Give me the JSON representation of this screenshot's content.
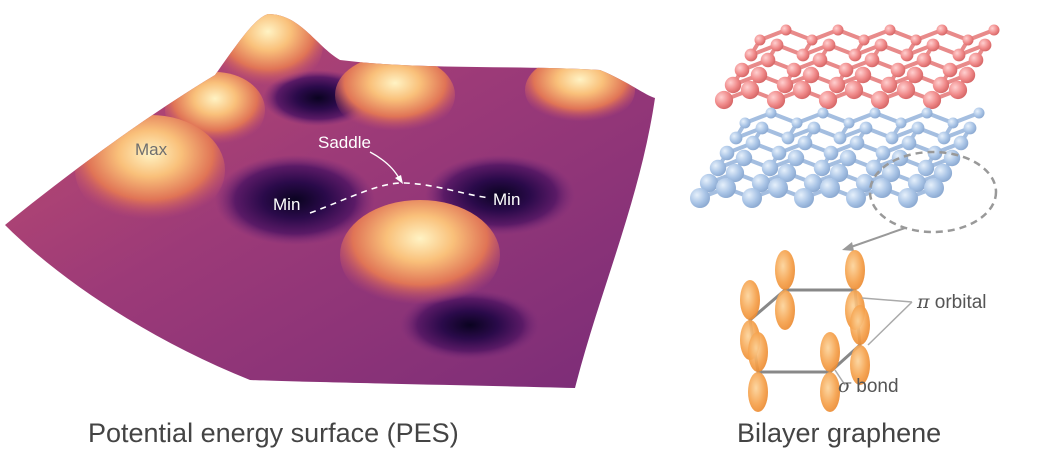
{
  "pes": {
    "caption": "Potential energy surface (PES)",
    "labels": {
      "max": "Max",
      "saddle": "Saddle",
      "min_left": "Min",
      "min_right": "Min"
    }
  },
  "graphene": {
    "caption": "Bilayer graphene",
    "pi_symbol": "π",
    "pi_text": " orbital",
    "sigma_symbol": "σ",
    "sigma_text": " bond"
  },
  "colors": {
    "surface_dark": "#2a0a4a",
    "surface_mid": "#a8346f",
    "surface_light": "#ffe9b0",
    "top_layer": "#f08a8a",
    "bottom_layer": "#a9c4e6",
    "orbital": "#f5a04a"
  }
}
